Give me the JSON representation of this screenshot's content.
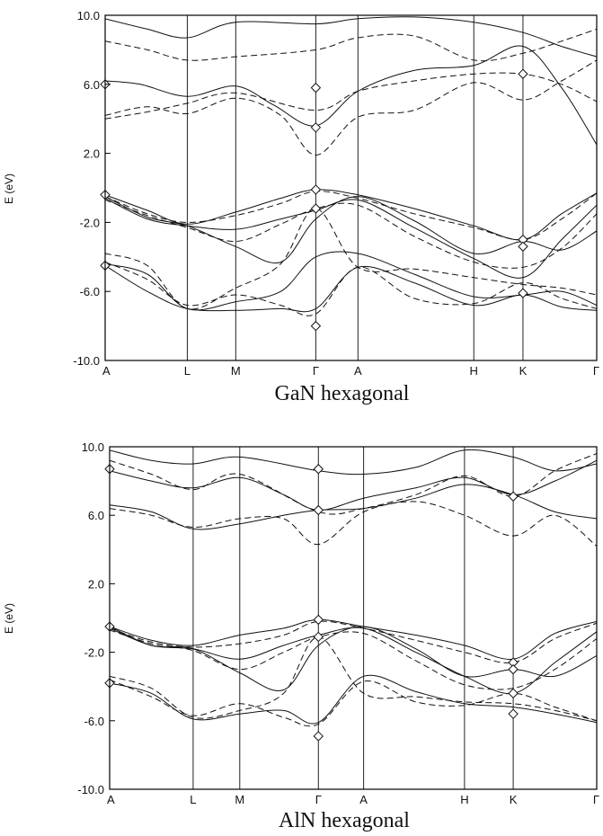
{
  "chart_data": [
    {
      "type": "line",
      "title": "GaN hexagonal",
      "ylabel": "E (eV)",
      "ylim": [
        -10,
        10
      ],
      "yticks": [
        "10.0",
        "6.0",
        "2.0",
        "-2.0",
        "-6.0",
        "-10.0"
      ],
      "ytick_values": [
        10,
        6,
        2,
        -2,
        -6,
        -10
      ],
      "xlim": [
        0,
        7
      ],
      "kpoints": [
        {
          "label": "A",
          "x": 0
        },
        {
          "label": "L",
          "x": 1.17
        },
        {
          "label": "M",
          "x": 1.86
        },
        {
          "label": "Γ",
          "x": 3.0
        },
        {
          "label": "A",
          "x": 3.6
        },
        {
          "label": "H",
          "x": 5.25
        },
        {
          "label": "K",
          "x": 5.95
        },
        {
          "label": "Γ",
          "x": 7.0
        }
      ],
      "series": [
        {
          "style": "solid",
          "x": [
            0,
            0.6,
            1.17,
            1.86,
            3.0,
            3.6,
            4.4,
            5.25,
            5.95,
            6.5,
            7
          ],
          "y": [
            9.8,
            9.2,
            8.7,
            9.6,
            9.5,
            9.8,
            9.9,
            9.6,
            9.0,
            8.2,
            7.6
          ]
        },
        {
          "style": "dashed",
          "x": [
            0,
            0.6,
            1.17,
            1.86,
            3.0,
            3.6,
            4.4,
            5.25,
            5.95,
            6.5,
            7
          ],
          "y": [
            8.5,
            8.0,
            7.4,
            7.6,
            8.0,
            8.7,
            8.8,
            7.4,
            7.8,
            8.5,
            9.2
          ]
        },
        {
          "style": "solid",
          "x": [
            0,
            0.5,
            1.17,
            1.86,
            2.4,
            3.0,
            3.6,
            4.4,
            5.25,
            5.95,
            6.5,
            7
          ],
          "y": [
            6.2,
            6.0,
            5.3,
            5.9,
            4.8,
            3.6,
            5.6,
            6.8,
            7.1,
            8.2,
            5.8,
            2.5
          ]
        },
        {
          "style": "dashed",
          "x": [
            0,
            0.6,
            1.17,
            1.86,
            2.5,
            3.0,
            3.6,
            4.4,
            5.25,
            5.95,
            6.5,
            7
          ],
          "y": [
            4.2,
            4.7,
            4.3,
            5.2,
            4.2,
            1.9,
            4.1,
            4.5,
            6.1,
            5.1,
            6.2,
            7.4
          ]
        },
        {
          "style": "dashed",
          "x": [
            0,
            0.6,
            1.17,
            1.86,
            3.0,
            3.6,
            4.4,
            5.25,
            5.95,
            6.5,
            7
          ],
          "y": [
            4.0,
            4.4,
            4.9,
            5.5,
            4.5,
            5.6,
            6.2,
            6.6,
            6.6,
            6.0,
            5.0
          ]
        },
        {
          "style": "solid",
          "x": [
            0,
            0.6,
            1.17,
            1.86,
            2.5,
            3.0,
            3.6,
            4.4,
            5.25,
            5.95,
            6.5,
            7
          ],
          "y": [
            -0.4,
            -1.3,
            -2.1,
            -1.4,
            -0.6,
            -0.1,
            -0.4,
            -1.2,
            -2.2,
            -3.0,
            -1.5,
            -0.3
          ]
        },
        {
          "style": "dashed",
          "x": [
            0,
            0.6,
            1.17,
            1.86,
            2.5,
            3.0,
            3.6,
            4.4,
            5.25,
            5.95,
            6.5,
            7
          ],
          "y": [
            -0.5,
            -1.5,
            -2.0,
            -1.6,
            -0.9,
            -0.2,
            -0.6,
            -1.5,
            -2.3,
            -3.0,
            -1.8,
            -0.3
          ]
        },
        {
          "style": "solid",
          "x": [
            0,
            0.6,
            1.17,
            1.86,
            2.5,
            3.0,
            3.6,
            4.4,
            5.25,
            5.95,
            6.5,
            7
          ],
          "y": [
            -0.6,
            -1.8,
            -2.2,
            -2.4,
            -1.8,
            -1.3,
            -0.7,
            -2.3,
            -4.1,
            -5.2,
            -3.0,
            -1.0
          ]
        },
        {
          "style": "dashed",
          "x": [
            0,
            0.6,
            1.17,
            1.86,
            2.5,
            3.0,
            3.6,
            4.4,
            5.25,
            5.95,
            6.5,
            7
          ],
          "y": [
            -0.7,
            -1.6,
            -2.3,
            -3.1,
            -2.1,
            -1.2,
            -1.0,
            -2.8,
            -4.3,
            -4.6,
            -3.5,
            -1.5
          ]
        },
        {
          "style": "solid",
          "x": [
            0,
            0.6,
            1.17,
            1.86,
            2.5,
            3.0,
            3.6,
            4.4,
            5.25,
            5.95,
            6.5,
            7
          ],
          "y": [
            -0.5,
            -1.7,
            -2.2,
            -3.4,
            -4.3,
            -1.8,
            -0.5,
            -1.9,
            -3.8,
            -3.1,
            -3.6,
            -2.5
          ]
        },
        {
          "style": "dashed",
          "x": [
            0,
            0.6,
            1.17,
            1.86,
            2.5,
            3.0,
            3.6,
            4.4,
            5.25,
            5.95,
            6.5,
            7
          ],
          "y": [
            -3.8,
            -4.5,
            -7.0,
            -5.8,
            -4.4,
            -1.2,
            -4.6,
            -4.7,
            -5.2,
            -5.6,
            -5.8,
            -6.2
          ]
        },
        {
          "style": "solid",
          "x": [
            0,
            0.6,
            1.17,
            1.86,
            2.5,
            3.0,
            3.6,
            4.4,
            5.25,
            5.95,
            6.5,
            7
          ],
          "y": [
            -4.4,
            -5.0,
            -7.0,
            -6.6,
            -6.0,
            -4.0,
            -3.8,
            -5.0,
            -6.3,
            -6.2,
            -6.0,
            -6.8
          ]
        },
        {
          "style": "dashed",
          "x": [
            0,
            0.6,
            1.17,
            1.86,
            2.5,
            3.0,
            3.6,
            4.4,
            5.25,
            5.95,
            6.5,
            7
          ],
          "y": [
            -4.3,
            -5.3,
            -6.8,
            -6.2,
            -6.8,
            -7.3,
            -4.6,
            -6.4,
            -6.7,
            -5.5,
            -6.4,
            -7.0
          ]
        },
        {
          "style": "solid",
          "x": [
            0,
            0.6,
            1.17,
            1.86,
            2.5,
            3.0,
            3.6,
            4.4,
            5.25,
            5.95,
            6.5,
            7
          ],
          "y": [
            -4.5,
            -6.0,
            -7.0,
            -7.1,
            -7.0,
            -7.0,
            -4.6,
            -5.5,
            -6.8,
            -6.2,
            -6.9,
            -7.1
          ]
        }
      ],
      "markers": [
        {
          "x": 0,
          "y": 6.0
        },
        {
          "x": 0,
          "y": -0.4
        },
        {
          "x": 0,
          "y": -4.5
        },
        {
          "x": 3.0,
          "y": 5.8
        },
        {
          "x": 3.0,
          "y": 3.5
        },
        {
          "x": 3.0,
          "y": -0.1
        },
        {
          "x": 3.0,
          "y": -1.2
        },
        {
          "x": 3.0,
          "y": -8.0
        },
        {
          "x": 5.95,
          "y": 6.6
        },
        {
          "x": 5.95,
          "y": -3.0
        },
        {
          "x": 5.95,
          "y": -3.4
        },
        {
          "x": 5.95,
          "y": -6.1
        }
      ]
    },
    {
      "type": "line",
      "title": "AlN hexagonal",
      "ylabel": "E (eV)",
      "ylim": [
        -10,
        10
      ],
      "yticks": [
        "10.0",
        "6.0",
        "2.0",
        "-2.0",
        "-6.0",
        "-10.0"
      ],
      "ytick_values": [
        10,
        6,
        2,
        -2,
        -6,
        -10
      ],
      "xlim": [
        0,
        7
      ],
      "kpoints": [
        {
          "label": "A",
          "x": 0
        },
        {
          "label": "L",
          "x": 1.2
        },
        {
          "label": "M",
          "x": 1.87
        },
        {
          "label": "Γ",
          "x": 3.0
        },
        {
          "label": "A",
          "x": 3.65
        },
        {
          "label": "H",
          "x": 5.1
        },
        {
          "label": "K",
          "x": 5.8
        },
        {
          "label": "Γ",
          "x": 7.0
        }
      ],
      "series": [
        {
          "style": "solid",
          "x": [
            0,
            0.6,
            1.2,
            1.87,
            3.0,
            3.65,
            4.4,
            5.1,
            5.8,
            6.4,
            7
          ],
          "y": [
            9.8,
            9.2,
            9.0,
            9.4,
            8.6,
            8.4,
            8.8,
            9.8,
            9.4,
            8.6,
            9.0
          ]
        },
        {
          "style": "dashed",
          "x": [
            0,
            0.6,
            1.2,
            1.87,
            3.0,
            3.65,
            4.4,
            5.1,
            5.8,
            6.4,
            7
          ],
          "y": [
            9.2,
            8.4,
            7.5,
            8.4,
            6.2,
            6.4,
            7.2,
            8.3,
            7.1,
            8.6,
            9.6
          ]
        },
        {
          "style": "solid",
          "x": [
            0,
            0.6,
            1.2,
            1.87,
            2.5,
            3.0,
            3.65,
            4.4,
            5.1,
            5.8,
            6.4,
            7
          ],
          "y": [
            8.6,
            8.0,
            7.6,
            8.2,
            7.2,
            6.3,
            7.0,
            7.6,
            8.2,
            7.2,
            8.0,
            9.2
          ]
        },
        {
          "style": "dashed",
          "x": [
            0,
            0.6,
            1.2,
            1.87,
            2.5,
            3.0,
            3.65,
            4.4,
            5.1,
            5.8,
            6.4,
            7
          ],
          "y": [
            6.4,
            6.0,
            5.3,
            5.8,
            5.8,
            4.3,
            6.2,
            6.8,
            6.0,
            4.8,
            6.0,
            4.2
          ]
        },
        {
          "style": "solid",
          "x": [
            0,
            0.6,
            1.2,
            1.87,
            2.5,
            3.0,
            3.65,
            4.4,
            5.1,
            5.8,
            6.4,
            7
          ],
          "y": [
            6.6,
            6.2,
            5.2,
            5.5,
            6.0,
            6.3,
            6.4,
            7.0,
            7.8,
            7.2,
            6.2,
            5.8
          ]
        },
        {
          "style": "solid",
          "x": [
            0,
            0.6,
            1.2,
            1.87,
            2.5,
            3.0,
            3.65,
            4.4,
            5.1,
            5.8,
            6.4,
            7
          ],
          "y": [
            -0.5,
            -1.3,
            -1.6,
            -1.0,
            -0.6,
            -0.1,
            -0.5,
            -1.0,
            -1.6,
            -2.4,
            -0.9,
            -0.2
          ]
        },
        {
          "style": "dashed",
          "x": [
            0,
            0.6,
            1.2,
            1.87,
            2.5,
            3.0,
            3.65,
            4.4,
            5.1,
            5.8,
            6.4,
            7
          ],
          "y": [
            -0.6,
            -1.4,
            -1.7,
            -1.5,
            -1.0,
            -0.2,
            -0.6,
            -1.3,
            -2.0,
            -2.6,
            -1.2,
            -0.3
          ]
        },
        {
          "style": "solid",
          "x": [
            0,
            0.6,
            1.2,
            1.87,
            2.5,
            3.0,
            3.65,
            4.4,
            5.1,
            5.8,
            6.4,
            7
          ],
          "y": [
            -0.6,
            -1.6,
            -1.8,
            -2.4,
            -1.6,
            -1.0,
            -0.6,
            -2.0,
            -3.4,
            -4.4,
            -2.6,
            -0.8
          ]
        },
        {
          "style": "dashed",
          "x": [
            0,
            0.6,
            1.2,
            1.87,
            2.5,
            3.0,
            3.65,
            4.4,
            5.1,
            5.8,
            6.4,
            7
          ],
          "y": [
            -0.7,
            -1.5,
            -1.9,
            -3.0,
            -2.0,
            -1.1,
            -0.9,
            -2.5,
            -3.9,
            -4.1,
            -3.0,
            -1.2
          ]
        },
        {
          "style": "solid",
          "x": [
            0,
            0.6,
            1.2,
            1.87,
            2.5,
            3.0,
            3.65,
            4.4,
            5.1,
            5.8,
            6.4,
            7
          ],
          "y": [
            -0.5,
            -1.6,
            -1.8,
            -3.2,
            -4.2,
            -1.6,
            -0.5,
            -1.8,
            -3.4,
            -3.0,
            -3.4,
            -2.2
          ]
        },
        {
          "style": "dashed",
          "x": [
            0,
            0.6,
            1.2,
            1.87,
            2.5,
            3.0,
            3.65,
            4.4,
            5.1,
            5.8,
            6.4,
            7
          ],
          "y": [
            -3.4,
            -4.1,
            -5.8,
            -5.4,
            -4.4,
            -1.1,
            -4.4,
            -4.6,
            -4.9,
            -5.0,
            -5.4,
            -6.0
          ]
        },
        {
          "style": "solid",
          "x": [
            0,
            0.6,
            1.2,
            1.87,
            2.5,
            3.0,
            3.65,
            4.4,
            5.1,
            5.8,
            6.4,
            7
          ],
          "y": [
            -3.8,
            -4.4,
            -5.9,
            -5.6,
            -5.4,
            -6.1,
            -3.4,
            -4.3,
            -5.0,
            -5.2,
            -5.6,
            -6.1
          ]
        },
        {
          "style": "dashed",
          "x": [
            0,
            0.6,
            1.2,
            1.87,
            2.5,
            3.0,
            3.65,
            4.4,
            5.1,
            5.8,
            6.4,
            7
          ],
          "y": [
            -3.6,
            -4.6,
            -5.7,
            -5.0,
            -5.8,
            -6.2,
            -3.7,
            -4.9,
            -5.1,
            -4.4,
            -5.2,
            -6.0
          ]
        }
      ],
      "markers": [
        {
          "x": 0,
          "y": 8.7
        },
        {
          "x": 0,
          "y": -0.5
        },
        {
          "x": 0,
          "y": -3.8
        },
        {
          "x": 3.0,
          "y": 8.7
        },
        {
          "x": 3.0,
          "y": 6.3
        },
        {
          "x": 3.0,
          "y": -0.1
        },
        {
          "x": 3.0,
          "y": -1.1
        },
        {
          "x": 3.0,
          "y": -6.9
        },
        {
          "x": 5.8,
          "y": 7.1
        },
        {
          "x": 5.8,
          "y": -2.6
        },
        {
          "x": 5.8,
          "y": -3.0
        },
        {
          "x": 5.8,
          "y": -4.4
        },
        {
          "x": 5.8,
          "y": -5.6
        }
      ]
    }
  ]
}
